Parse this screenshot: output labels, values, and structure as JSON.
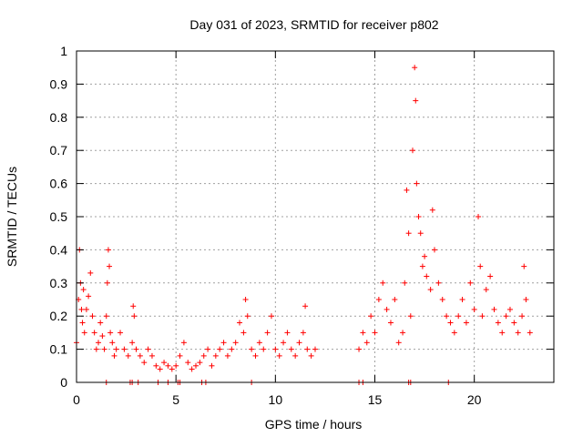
{
  "chart_data": {
    "type": "scatter",
    "title": "Day 031 of 2023, SRMTID for receiver p802",
    "xlabel": "GPS time / hours",
    "ylabel": "SRMTID / TECUs",
    "xlim": [
      0,
      24
    ],
    "ylim": [
      0,
      1
    ],
    "x_ticks": [
      0,
      5,
      10,
      15,
      20
    ],
    "x_tick_labels": [
      "0",
      "5",
      "10",
      "15",
      "20"
    ],
    "y_ticks": [
      0,
      0.1,
      0.2,
      0.3,
      0.4,
      0.5,
      0.6,
      0.7,
      0.8,
      0.9,
      1
    ],
    "y_tick_labels": [
      "0",
      "0.1",
      "0.2",
      "0.3",
      "0.4",
      "0.5",
      "0.6",
      "0.7",
      "0.8",
      "0.9",
      "1"
    ],
    "grid": true,
    "marker": "+",
    "series": [
      {
        "name": "SRMTID",
        "color": "#ff0000",
        "x": [
          0.0,
          0.1,
          0.15,
          0.2,
          0.25,
          0.3,
          0.35,
          0.4,
          0.5,
          0.6,
          0.7,
          0.8,
          0.9,
          1.0,
          1.1,
          1.2,
          1.3,
          1.4,
          1.5,
          1.55,
          1.6,
          1.65,
          1.7,
          1.8,
          1.9,
          2.0,
          2.2,
          2.4,
          2.6,
          2.8,
          2.85,
          2.9,
          3.0,
          3.2,
          3.4,
          3.6,
          3.8,
          4.0,
          4.2,
          4.4,
          4.6,
          4.8,
          5.0,
          5.2,
          5.4,
          5.6,
          5.8,
          6.0,
          6.2,
          6.4,
          6.6,
          6.8,
          7.0,
          7.2,
          7.4,
          7.6,
          7.8,
          8.0,
          8.2,
          8.4,
          8.5,
          8.6,
          8.8,
          9.0,
          9.2,
          9.4,
          9.6,
          9.8,
          10.0,
          10.2,
          10.4,
          10.6,
          10.8,
          11.0,
          11.2,
          11.4,
          11.5,
          11.6,
          11.8,
          12.0,
          14.2,
          14.4,
          14.6,
          14.8,
          15.0,
          15.2,
          15.4,
          15.6,
          15.8,
          16.0,
          16.2,
          16.4,
          16.5,
          16.6,
          16.7,
          16.8,
          16.9,
          17.0,
          17.05,
          17.1,
          17.2,
          17.3,
          17.4,
          17.5,
          17.6,
          17.8,
          17.9,
          18.0,
          18.2,
          18.4,
          18.6,
          18.8,
          19.0,
          19.2,
          19.4,
          19.6,
          19.8,
          20.0,
          20.2,
          20.3,
          20.4,
          20.6,
          20.8,
          21.0,
          21.2,
          21.4,
          21.6,
          21.8,
          22.0,
          22.2,
          22.4,
          22.5,
          22.6,
          22.8
        ],
        "y": [
          0.12,
          0.25,
          0.4,
          0.3,
          0.22,
          0.18,
          0.28,
          0.15,
          0.22,
          0.26,
          0.33,
          0.2,
          0.15,
          0.1,
          0.12,
          0.18,
          0.14,
          0.1,
          0.2,
          0.3,
          0.4,
          0.35,
          0.15,
          0.12,
          0.08,
          0.1,
          0.15,
          0.1,
          0.08,
          0.12,
          0.23,
          0.2,
          0.1,
          0.08,
          0.06,
          0.1,
          0.08,
          0.05,
          0.04,
          0.06,
          0.05,
          0.04,
          0.05,
          0.08,
          0.12,
          0.06,
          0.04,
          0.05,
          0.06,
          0.08,
          0.1,
          0.05,
          0.08,
          0.1,
          0.12,
          0.08,
          0.1,
          0.12,
          0.18,
          0.15,
          0.25,
          0.2,
          0.1,
          0.08,
          0.12,
          0.1,
          0.15,
          0.2,
          0.1,
          0.08,
          0.12,
          0.15,
          0.1,
          0.08,
          0.12,
          0.15,
          0.23,
          0.1,
          0.08,
          0.1,
          0.1,
          0.15,
          0.12,
          0.2,
          0.15,
          0.25,
          0.3,
          0.22,
          0.18,
          0.25,
          0.12,
          0.15,
          0.3,
          0.58,
          0.45,
          0.2,
          0.7,
          0.95,
          0.85,
          0.6,
          0.5,
          0.45,
          0.35,
          0.38,
          0.32,
          0.28,
          0.52,
          0.4,
          0.3,
          0.25,
          0.2,
          0.18,
          0.15,
          0.2,
          0.25,
          0.18,
          0.3,
          0.22,
          0.5,
          0.35,
          0.2,
          0.28,
          0.32,
          0.22,
          0.18,
          0.15,
          0.2,
          0.22,
          0.18,
          0.15,
          0.2,
          0.35,
          0.25,
          0.15
        ],
        "zero_x": [
          1.5,
          2.7,
          2.8,
          3.1,
          4.1,
          4.6,
          5.1,
          5.2,
          6.3,
          6.5,
          8.8,
          14.2,
          14.4,
          16.7,
          16.8,
          18.7
        ]
      }
    ]
  }
}
